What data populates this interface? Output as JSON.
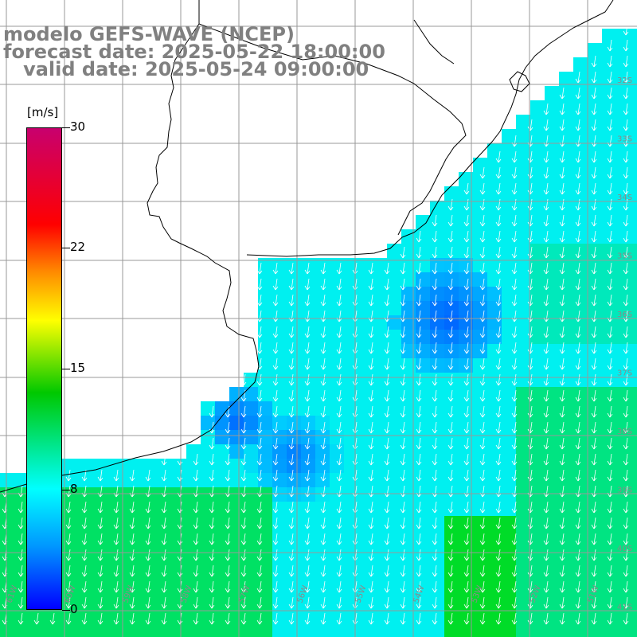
{
  "header": {
    "line1": "modelo GEFS-WAVE (NCEP)",
    "line2": "forecast date: 2025-05-22 18:00:00",
    "line3": "   valid date: 2025-05-24 09:00:00"
  },
  "colorbar": {
    "unit": "[m/s]",
    "ticks": [
      {
        "value": "30",
        "label": "30"
      },
      {
        "value": "22",
        "label": "22"
      },
      {
        "value": "15",
        "label": "15"
      },
      {
        "value": "8",
        "label": "8"
      },
      {
        "value": "0",
        "label": "0"
      }
    ],
    "colors": [
      "#c8006e",
      "#ff0000",
      "#ff8c00",
      "#ffff00",
      "#00c800",
      "#00ffff",
      "#0096ff",
      "#0000ff"
    ]
  },
  "map": {
    "lat_labels": [
      "32S",
      "33S",
      "34S",
      "35S",
      "36S",
      "37S",
      "38S",
      "39S",
      "40S",
      "41S"
    ],
    "lon_labels": [
      "61W",
      "60W",
      "59W",
      "58W",
      "57W",
      "56W",
      "55W",
      "54W",
      "53W",
      "52W",
      "51W"
    ],
    "land_color": "#ffffff",
    "wind_direction": "north to south",
    "arrow_color": "#ffffff"
  }
}
